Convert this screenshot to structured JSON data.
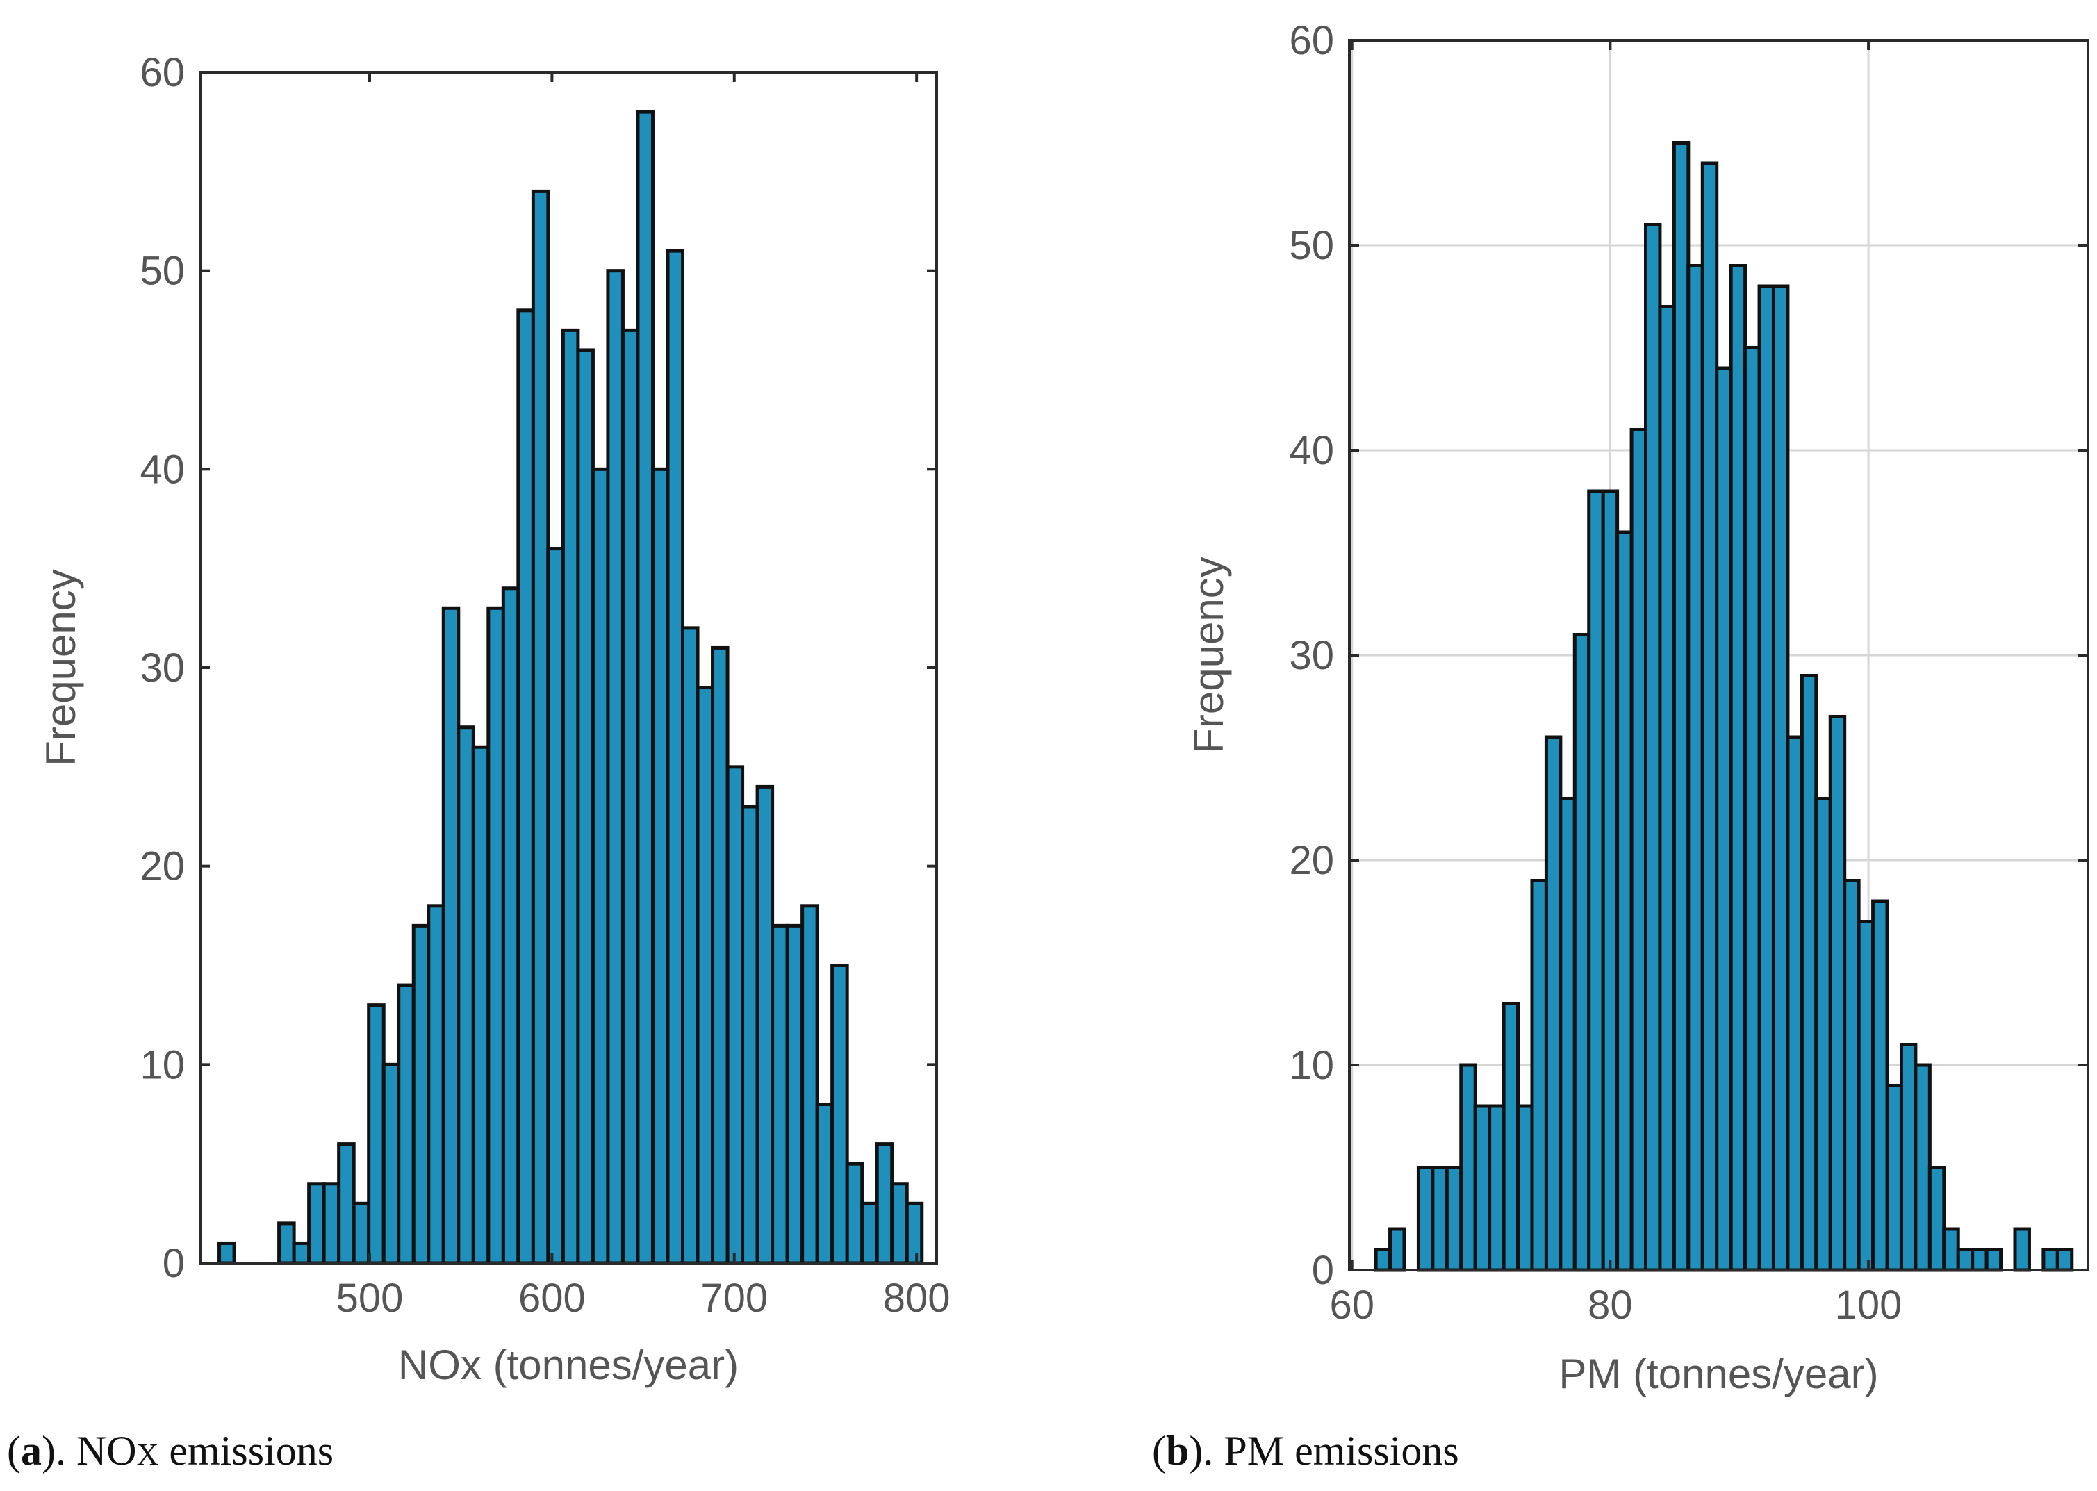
{
  "chart_data": [
    {
      "type": "bar",
      "title": "",
      "xlabel": "NOx (tonnes/year)",
      "ylabel": "Frequency",
      "xlim": [
        407,
        811
      ],
      "ylim": [
        0,
        60
      ],
      "xticks": [
        "500",
        "600",
        "700",
        "800"
      ],
      "xtick_values": [
        500,
        600,
        700,
        800
      ],
      "yticks": [
        "0",
        "10",
        "20",
        "30",
        "40",
        "50",
        "60"
      ],
      "ytick_values": [
        0,
        10,
        20,
        30,
        40,
        50,
        60
      ],
      "grid": false,
      "bin_width": 8.2,
      "bin_centers": [
        421.6,
        429.8,
        438.0,
        446.2,
        454.4,
        462.6,
        470.8,
        479.0,
        487.2,
        495.4,
        503.6,
        511.8,
        520.0,
        528.2,
        536.4,
        544.6,
        552.8,
        561.0,
        569.2,
        577.4,
        585.6,
        593.8,
        602.0,
        610.2,
        618.4,
        626.6,
        634.8,
        643.0,
        651.2,
        659.4,
        667.6,
        675.8,
        684.0,
        692.2,
        700.4,
        708.6,
        716.8,
        725.0,
        733.2,
        741.4,
        749.6,
        757.8,
        766.0,
        774.2,
        782.4,
        790.6,
        798.8
      ],
      "values": [
        1,
        0,
        0,
        0,
        2,
        1,
        4,
        4,
        6,
        3,
        13,
        10,
        14,
        17,
        18,
        33,
        27,
        26,
        33,
        34,
        48,
        54,
        36,
        47,
        46,
        40,
        50,
        47,
        58,
        40,
        51,
        32,
        29,
        31,
        25,
        23,
        24,
        17,
        17,
        18,
        8,
        15,
        5,
        3,
        6,
        4,
        3
      ],
      "caption_label": "a",
      "caption_text": "NO",
      "caption_sub": "X",
      "caption_rest": " emissions"
    },
    {
      "type": "bar",
      "title": "",
      "xlabel": "PM (tonnes/year)",
      "ylabel": "Frequency",
      "xlim": [
        59.8,
        117.0
      ],
      "ylim": [
        0,
        60
      ],
      "xticks": [
        "60",
        "80",
        "100"
      ],
      "xtick_values": [
        60,
        80,
        100
      ],
      "yticks": [
        "0",
        "10",
        "20",
        "30",
        "40",
        "50",
        "60"
      ],
      "ytick_values": [
        0,
        10,
        20,
        30,
        40,
        50,
        60
      ],
      "grid": true,
      "bin_width": 1.1,
      "bin_centers": [
        62.4,
        63.5,
        64.6,
        65.7,
        66.8,
        67.9,
        69.0,
        70.1,
        71.2,
        72.3,
        73.4,
        74.5,
        75.6,
        76.7,
        77.8,
        78.9,
        80.0,
        81.1,
        82.2,
        83.3,
        84.4,
        85.5,
        86.6,
        87.7,
        88.8,
        89.9,
        91.0,
        92.1,
        93.2,
        94.3,
        95.4,
        96.5,
        97.6,
        98.7,
        99.8,
        100.9,
        102.0,
        103.1,
        104.2,
        105.3,
        106.4,
        107.5,
        108.6,
        109.7,
        110.8,
        111.9,
        113.0,
        114.1,
        115.2
      ],
      "values": [
        1,
        2,
        0,
        5,
        5,
        5,
        10,
        8,
        8,
        13,
        8,
        19,
        26,
        23,
        31,
        38,
        38,
        36,
        41,
        51,
        47,
        55,
        49,
        54,
        44,
        49,
        45,
        48,
        48,
        26,
        29,
        23,
        27,
        19,
        17,
        18,
        9,
        11,
        10,
        5,
        2,
        1,
        1,
        1,
        0,
        2,
        0,
        1,
        1
      ],
      "caption_label": "b",
      "caption_text": "",
      "caption_sub": "",
      "caption_rest": ". PM emissions"
    }
  ],
  "colors": {
    "bar_fill": "#1f8fbb",
    "bar_edge": "#111111",
    "axis": "#2a2a2a",
    "grid": "#d6d6d6",
    "text": "#555555",
    "caption": "#111111"
  }
}
